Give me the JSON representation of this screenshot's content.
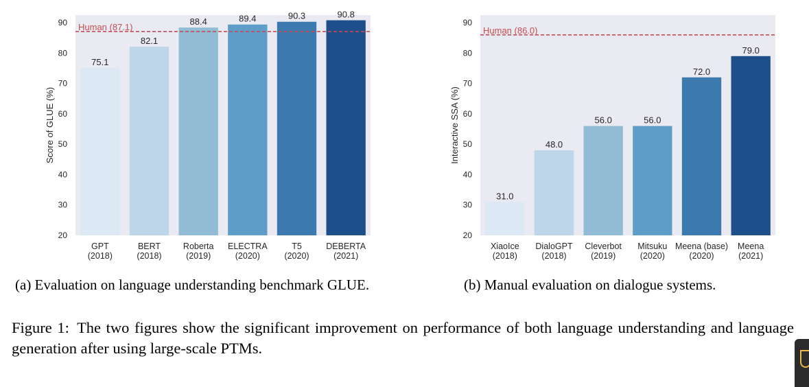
{
  "chart_data": [
    {
      "type": "bar",
      "title": "",
      "xlabel": "",
      "ylabel": "Score of GLUE (%)",
      "ylim": [
        20,
        92.5
      ],
      "yticks": [
        20,
        30,
        40,
        50,
        60,
        70,
        80,
        90
      ],
      "grid": false,
      "categories": [
        [
          "GPT",
          "(2018)"
        ],
        [
          "BERT",
          "(2018)"
        ],
        [
          "Roberta",
          "(2019)"
        ],
        [
          "ELECTRA",
          "(2020)"
        ],
        [
          "T5",
          "(2020)"
        ],
        [
          "DEBERTA",
          "(2021)"
        ]
      ],
      "values": [
        75.1,
        82.1,
        88.4,
        89.4,
        90.3,
        90.8
      ],
      "value_labels": [
        "75.1",
        "82.1",
        "88.4",
        "89.4",
        "90.3",
        "90.8"
      ],
      "reference_line": {
        "label": "Human (87.1)",
        "value": 87.1,
        "style": "dashed",
        "color": "#c44e52"
      },
      "colors": [
        "#dce9f5",
        "#bdd6e9",
        "#92bcd6",
        "#5e9dc7",
        "#3b79ae",
        "#1f4f8b"
      ],
      "background": "#eaeaf2"
    },
    {
      "type": "bar",
      "title": "",
      "xlabel": "",
      "ylabel": "Interactive SSA (%)",
      "ylim": [
        20,
        92.5
      ],
      "yticks": [
        20,
        30,
        40,
        50,
        60,
        70,
        80,
        90
      ],
      "grid": false,
      "categories": [
        [
          "XiaoIce",
          "(2018)"
        ],
        [
          "DialoGPT",
          "(2018)"
        ],
        [
          "Cleverbot",
          "(2019)"
        ],
        [
          "Mitsuku",
          "(2020)"
        ],
        [
          "Meena (base)",
          "(2020)"
        ],
        [
          "Meena",
          "(2021)"
        ]
      ],
      "values": [
        31.0,
        48.0,
        56.0,
        56.0,
        72.0,
        79.0
      ],
      "value_labels": [
        "31.0",
        "48.0",
        "56.0",
        "56.0",
        "72.0",
        "79.0"
      ],
      "reference_line": {
        "label": "Human (86.0)",
        "value": 86.0,
        "style": "dashed",
        "color": "#c44e52"
      },
      "colors": [
        "#dce9f5",
        "#bdd6e9",
        "#92bcd6",
        "#5e9dc7",
        "#3b79ae",
        "#1f4f8b"
      ],
      "background": "#eaeaf2"
    }
  ],
  "captions": {
    "a": "(a) Evaluation on language understanding benchmark GLUE.",
    "b": "(b) Manual evaluation on dialogue systems."
  },
  "figure": {
    "label": "Figure 1:",
    "text": "The two figures show the significant improvement on performance of both language understanding and language generation after using large-scale PTMs."
  }
}
